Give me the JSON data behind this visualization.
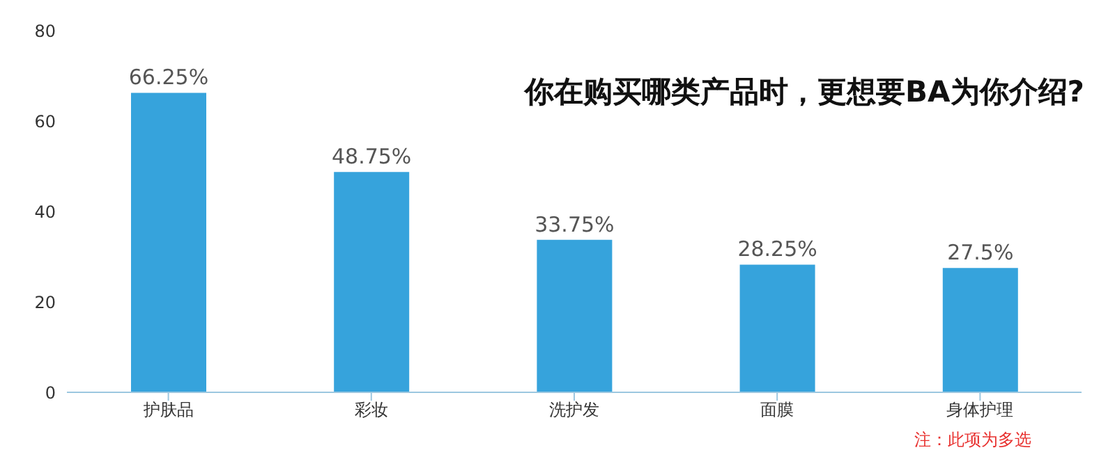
{
  "chart_data": {
    "type": "bar",
    "title": "你在购买哪类产品时，更想要BA为你介绍?",
    "categories": [
      "护肤品",
      "彩妆",
      "洗护发",
      "面膜",
      "身体护理"
    ],
    "values": [
      66.25,
      48.75,
      33.75,
      28.25,
      27.5
    ],
    "value_labels": [
      "66.25%",
      "48.75%",
      "33.75%",
      "28.25%",
      "27.5%"
    ],
    "color": "#36a3dc",
    "ylim": [
      0,
      80
    ],
    "yticks": [
      0,
      20,
      40,
      60,
      80
    ],
    "grid": false,
    "annotations": [
      "注：此项为多选"
    ]
  }
}
